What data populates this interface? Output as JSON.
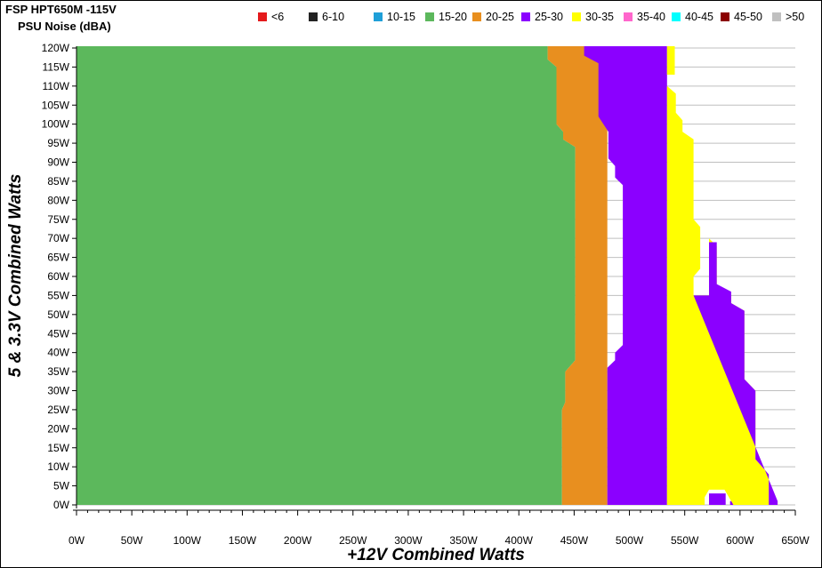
{
  "chart_data": {
    "type": "heatmap",
    "title": "FSP HPT650M -115V",
    "subtitle": "PSU Noise (dBA)",
    "xlabel": "+12V Combined Watts",
    "ylabel": "5 & 3.3V Combined Watts",
    "xlim": [
      0,
      650
    ],
    "ylim": [
      0,
      120
    ],
    "grid": true,
    "legend_position": "top-right",
    "x_ticks": [
      "0W",
      "50W",
      "100W",
      "150W",
      "200W",
      "250W",
      "300W",
      "350W",
      "400W",
      "450W",
      "500W",
      "550W",
      "600W",
      "650W"
    ],
    "y_ticks": [
      "0W",
      "5W",
      "10W",
      "15W",
      "20W",
      "25W",
      "30W",
      "35W",
      "40W",
      "45W",
      "50W",
      "55W",
      "60W",
      "65W",
      "70W",
      "75W",
      "80W",
      "85W",
      "90W",
      "95W",
      "100W",
      "105W",
      "110W",
      "115W",
      "120W"
    ],
    "legend": [
      {
        "label": "<6",
        "color": "#e41a1c"
      },
      {
        "label": "6-10",
        "color": "#222222"
      },
      {
        "label": "10-15",
        "color": "#1f9fd8"
      },
      {
        "label": "15-20",
        "color": "#5cb85c"
      },
      {
        "label": "20-25",
        "color": "#e88f1f"
      },
      {
        "label": "25-30",
        "color": "#8b00ff"
      },
      {
        "label": "30-35",
        "color": "#ffff00"
      },
      {
        "label": "35-40",
        "color": "#ff66cc"
      },
      {
        "label": "40-45",
        "color": "#00ffff"
      },
      {
        "label": "45-50",
        "color": "#8b0000"
      },
      {
        "label": ">50",
        "color": "#c0c0c0"
      }
    ],
    "series": [
      {
        "name": "15-20",
        "color": "#5cb85c",
        "polygon": [
          [
            0,
            0
          ],
          [
            439,
            0
          ],
          [
            439,
            25
          ],
          [
            442,
            27
          ],
          [
            442,
            35
          ],
          [
            451,
            38
          ],
          [
            451,
            94
          ],
          [
            440,
            96
          ],
          [
            440,
            98
          ],
          [
            434,
            100
          ],
          [
            434,
            115
          ],
          [
            426,
            117
          ],
          [
            426,
            121
          ],
          [
            0,
            121
          ]
        ]
      },
      {
        "name": "20-25",
        "color": "#e88f1f",
        "polygon": [
          [
            439,
            0
          ],
          [
            480,
            0
          ],
          [
            480,
            121
          ],
          [
            426,
            121
          ],
          [
            426,
            117
          ],
          [
            434,
            115
          ],
          [
            434,
            100
          ],
          [
            440,
            98
          ],
          [
            440,
            96
          ],
          [
            451,
            94
          ],
          [
            451,
            38
          ],
          [
            442,
            35
          ],
          [
            442,
            27
          ],
          [
            439,
            25
          ]
        ]
      },
      {
        "name": "25-30",
        "color": "#8b00ff",
        "polygon": [
          [
            480,
            0
          ],
          [
            534,
            0
          ],
          [
            534,
            121
          ],
          [
            459,
            121
          ],
          [
            459,
            118
          ],
          [
            472,
            116
          ],
          [
            472,
            102
          ],
          [
            481,
            98
          ],
          [
            481,
            91
          ],
          [
            487,
            89
          ],
          [
            487,
            86
          ],
          [
            494,
            84
          ],
          [
            494,
            42
          ],
          [
            487,
            40
          ],
          [
            487,
            38
          ],
          [
            480,
            36
          ]
        ]
      },
      {
        "name": "25-30-island-right",
        "color": "#8b00ff",
        "polygon": [
          [
            566,
            0
          ],
          [
            572,
            0
          ],
          [
            572,
            3
          ],
          [
            587,
            3
          ],
          [
            587,
            0
          ],
          [
            591,
            0
          ],
          [
            591,
            1
          ],
          [
            594,
            1
          ],
          [
            594,
            0
          ],
          [
            566,
            0
          ]
        ]
      },
      {
        "name": "30-35",
        "color": "#ffff00",
        "polygon": [
          [
            534,
            0
          ],
          [
            568,
            0
          ],
          [
            568,
            2
          ],
          [
            572,
            4
          ],
          [
            586,
            4
          ],
          [
            590,
            2
          ],
          [
            594,
            0
          ],
          [
            634,
            0
          ],
          [
            634,
            1
          ],
          [
            626,
            1
          ],
          [
            626,
            8
          ],
          [
            614,
            12
          ],
          [
            614,
            30
          ],
          [
            604,
            33
          ],
          [
            604,
            51
          ],
          [
            592,
            53
          ],
          [
            592,
            55
          ],
          [
            579,
            57
          ],
          [
            579,
            68
          ],
          [
            572,
            70
          ],
          [
            572,
            55
          ],
          [
            558,
            55
          ],
          [
            558,
            60
          ],
          [
            564,
            62
          ],
          [
            564,
            73
          ],
          [
            558,
            75
          ],
          [
            558,
            96
          ],
          [
            548,
            98
          ],
          [
            548,
            101
          ],
          [
            542,
            103
          ],
          [
            542,
            108
          ],
          [
            534,
            110
          ],
          [
            534,
            113
          ],
          [
            541,
            113
          ],
          [
            541,
            121
          ],
          [
            534,
            121
          ]
        ]
      },
      {
        "name": "25-30-lobe",
        "color": "#8b00ff",
        "polygon": [
          [
            558,
            55
          ],
          [
            572,
            55
          ],
          [
            572,
            69
          ],
          [
            579,
            69
          ],
          [
            579,
            58
          ],
          [
            592,
            56
          ],
          [
            592,
            53
          ],
          [
            604,
            51
          ],
          [
            604,
            33
          ],
          [
            614,
            30
          ],
          [
            614,
            12
          ],
          [
            626,
            8
          ],
          [
            626,
            0
          ],
          [
            634,
            0
          ],
          [
            634,
            1
          ]
        ]
      }
    ]
  }
}
